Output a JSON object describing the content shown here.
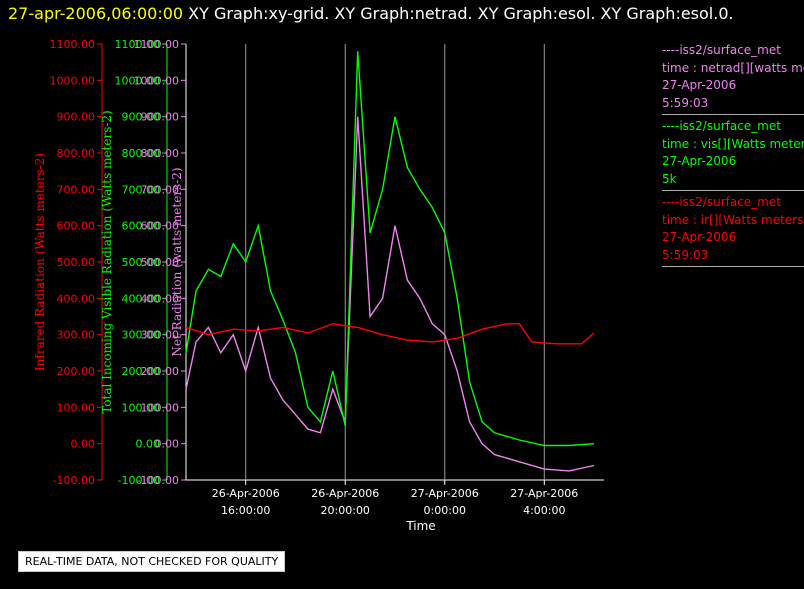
{
  "header": {
    "timestamp": "27-apr-2006,06:00:00",
    "rest": "  XY Graph:xy-grid.  XY Graph:netrad.  XY Graph:esol.  XY Graph:esol.0."
  },
  "legend": {
    "entries": [
      {
        "line1": "----iss2/surface_met",
        "line2": "time : netrad[][watts meters",
        "line3": "27-Apr-2006",
        "line4": "5:59:03",
        "color": "#ee82ee"
      },
      {
        "line1": "----iss2/surface_met",
        "line2": "time : vis[][Watts meters",
        "line3": "27-Apr-2006",
        "line4": "5k",
        "color": "#00ff00"
      },
      {
        "line1": "----iss2/surface_met",
        "line2": "time : ir[][Watts meters",
        "line3": "27-Apr-2006",
        "line4": "5:59:03",
        "color": "#ff0000"
      }
    ]
  },
  "note": "REAL-TIME DATA, NOT CHECKED FOR QUALITY",
  "chart_data": {
    "type": "line",
    "xlabel": "Time",
    "x_ticks": [
      {
        "value": 16,
        "line1": "26-Apr-2006",
        "line2": "16:00:00"
      },
      {
        "value": 20,
        "line1": "26-Apr-2006",
        "line2": "20:00:00"
      },
      {
        "value": 24,
        "line1": "27-Apr-2006",
        "line2": "0:00:00"
      },
      {
        "value": 28,
        "line1": "27-Apr-2006",
        "line2": "4:00:00"
      }
    ],
    "xlim": [
      13.6,
      30.4
    ],
    "grid": true,
    "axes": [
      {
        "label": "Infrared Radiation (Watts meters-2)",
        "color": "#ff0000",
        "ylim": [
          -100,
          1100
        ]
      },
      {
        "label": "Total Incoming Visible Radiation (Watts meters-2)",
        "color": "#00ff00",
        "ylim": [
          -100,
          1100
        ]
      },
      {
        "label": "Net Radiation (watts meters-2)",
        "color": "#ee82ee",
        "ylim": [
          -100,
          1100
        ]
      }
    ],
    "y_ticks": [
      "1100.00",
      "1000.00",
      "900.00",
      "800.00",
      "700.00",
      "600.00",
      "500.00",
      "400.00",
      "300.00",
      "200.00",
      "100.00",
      "0.00",
      "-100.00"
    ],
    "series": [
      {
        "name": "ir",
        "color": "#ff0000",
        "x": [
          13.6,
          14.5,
          15.5,
          16.5,
          17.5,
          18.5,
          19.5,
          20.5,
          21.5,
          22.5,
          23.5,
          24.5,
          25.5,
          26.5,
          27.0,
          27.5,
          28.5,
          29.5,
          30.0
        ],
        "y": [
          320,
          300,
          315,
          310,
          320,
          305,
          330,
          320,
          300,
          285,
          280,
          290,
          315,
          330,
          330,
          280,
          275,
          275,
          305
        ]
      },
      {
        "name": "vis",
        "color": "#00ff00",
        "x": [
          13.6,
          14.0,
          14.5,
          15.0,
          15.5,
          16.0,
          16.5,
          17.0,
          17.5,
          18.0,
          18.5,
          19.0,
          19.5,
          20.0,
          20.5,
          21.0,
          21.5,
          22.0,
          22.5,
          23.0,
          23.5,
          24.0,
          24.5,
          25.0,
          25.5,
          26.0,
          26.5,
          27.0,
          28.0,
          29.0,
          30.0
        ],
        "y": [
          250,
          420,
          480,
          460,
          550,
          500,
          600,
          420,
          340,
          250,
          100,
          60,
          200,
          50,
          1080,
          580,
          700,
          900,
          760,
          700,
          650,
          580,
          400,
          170,
          60,
          30,
          20,
          10,
          -5,
          -5,
          0
        ]
      },
      {
        "name": "netrad",
        "color": "#ee82ee",
        "x": [
          13.6,
          14.0,
          14.5,
          15.0,
          15.5,
          16.0,
          16.5,
          17.0,
          17.5,
          18.0,
          18.5,
          19.0,
          19.5,
          20.0,
          20.5,
          21.0,
          21.5,
          22.0,
          22.5,
          23.0,
          23.5,
          24.0,
          24.5,
          25.0,
          25.5,
          26.0,
          26.5,
          27.0,
          28.0,
          29.0,
          30.0
        ],
        "y": [
          150,
          280,
          320,
          250,
          300,
          200,
          320,
          180,
          120,
          80,
          40,
          30,
          150,
          60,
          900,
          350,
          400,
          600,
          450,
          400,
          330,
          300,
          200,
          60,
          0,
          -30,
          -40,
          -50,
          -70,
          -75,
          -60
        ]
      }
    ]
  }
}
